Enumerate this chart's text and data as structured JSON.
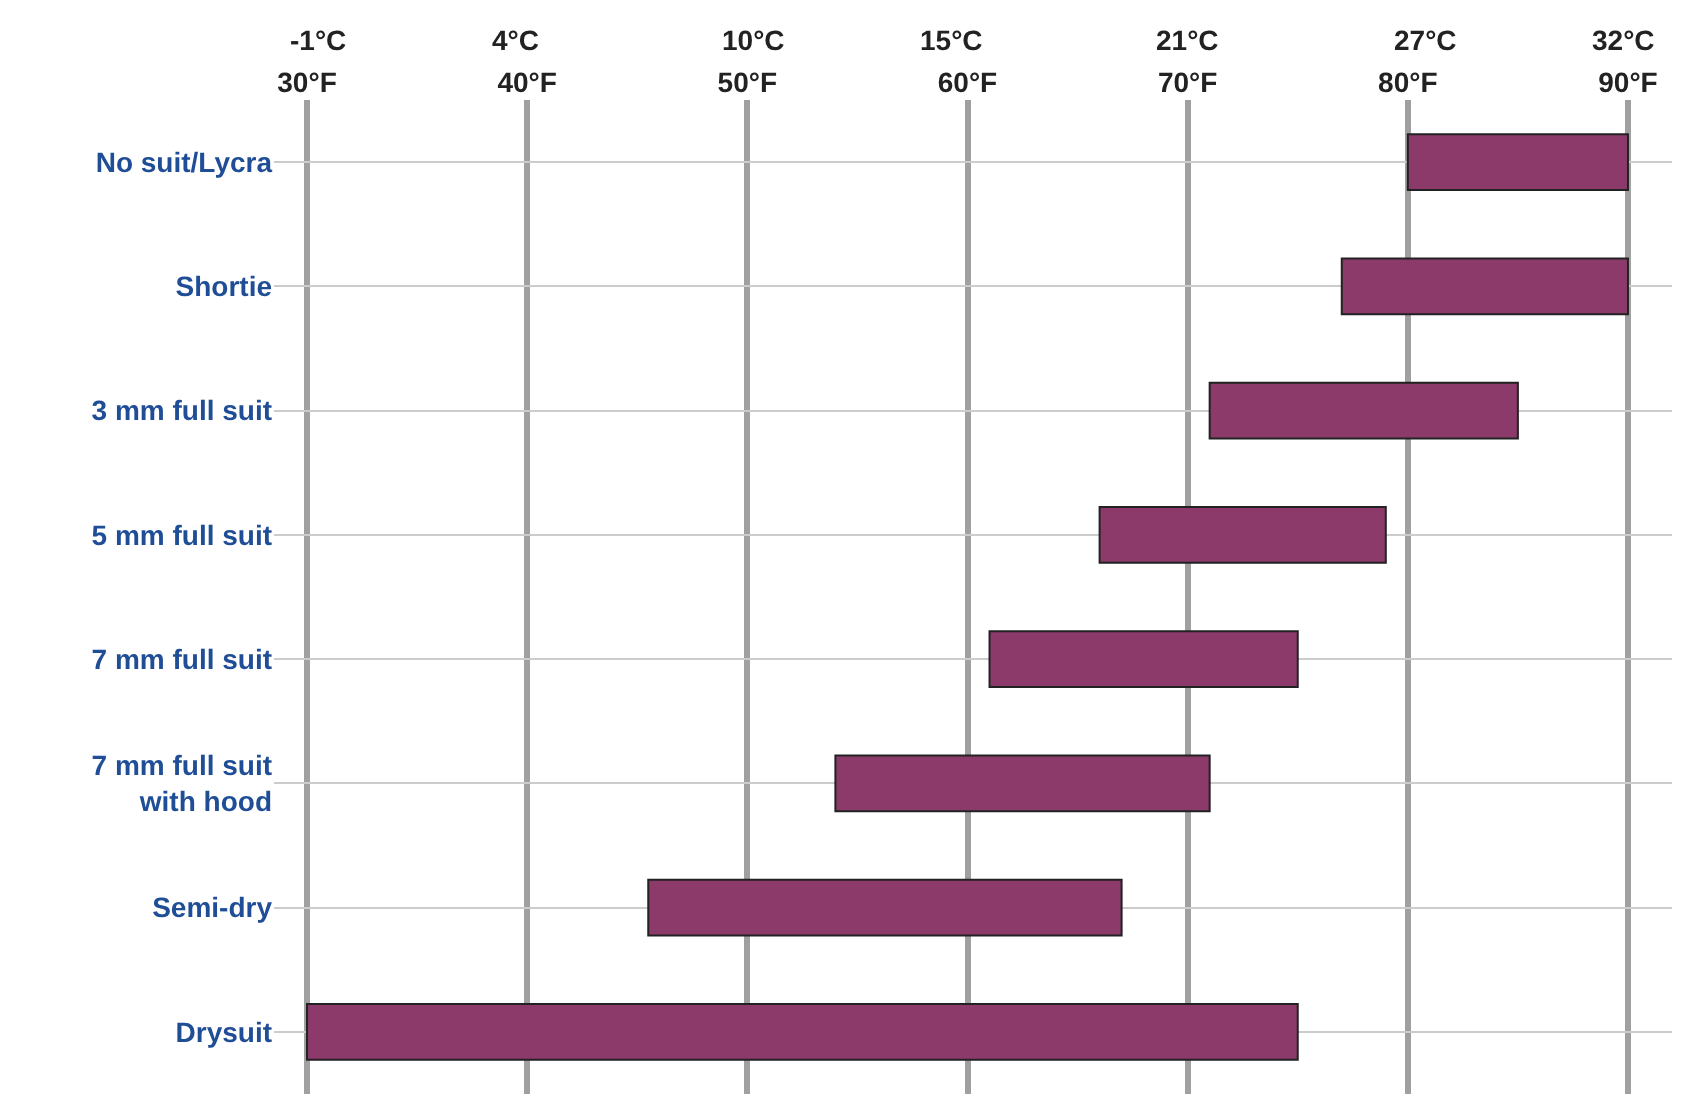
{
  "chart_data": {
    "type": "bar",
    "orientation": "horizontal",
    "categories": [
      "No suit/Lycra",
      "Shortie",
      "3 mm full suit",
      "5 mm full suit",
      "7 mm full suit",
      "7 mm full suit\nwith hood",
      "Semi-dry",
      "Drysuit"
    ],
    "base": [
      80,
      77,
      71,
      66,
      61,
      54,
      45.5,
      30
    ],
    "values": [
      10,
      13,
      14,
      13,
      14,
      17,
      21.5,
      45
    ],
    "color": "#8b3a6a",
    "xlim": [
      28.5,
      92
    ],
    "xticks": [
      {
        "value": 30,
        "label": "30°F"
      },
      {
        "value": 40,
        "label": "40°F"
      },
      {
        "value": 50,
        "label": "50°F"
      },
      {
        "value": 60,
        "label": "60°F"
      },
      {
        "value": 70,
        "label": "70°F"
      },
      {
        "value": 80,
        "label": "80°F"
      },
      {
        "value": 90,
        "label": "90°F"
      }
    ],
    "x2lim": [
      -2.12,
      33.26
    ],
    "x2ticks": [
      {
        "value": -1,
        "label": "-1°C"
      },
      {
        "value": 4,
        "label": "4°C"
      },
      {
        "value": 10,
        "label": "10°C"
      },
      {
        "value": 15,
        "label": "15°C"
      },
      {
        "value": 21,
        "label": "21°C"
      },
      {
        "value": 27,
        "label": "27°C"
      },
      {
        "value": 32,
        "label": "32°C"
      }
    ],
    "grid": true
  }
}
